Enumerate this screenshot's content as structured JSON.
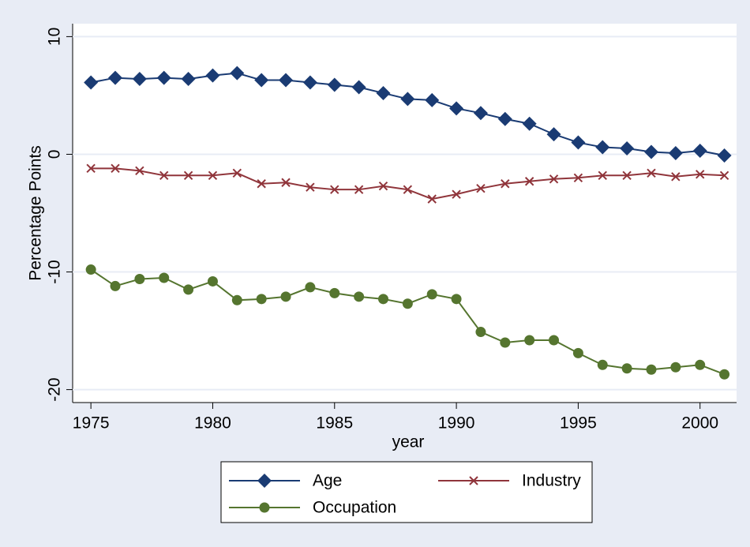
{
  "chart_data": {
    "type": "line",
    "x_label": "year",
    "y_label": "Percentage Points",
    "x": [
      1975,
      1976,
      1977,
      1978,
      1979,
      1980,
      1981,
      1982,
      1983,
      1984,
      1985,
      1986,
      1987,
      1988,
      1989,
      1990,
      1991,
      1992,
      1993,
      1994,
      1995,
      1996,
      1997,
      1998,
      1999,
      2000,
      2001
    ],
    "series": [
      {
        "name": "Age",
        "color": "#1a3b73",
        "marker": "diamond",
        "values": [
          6.1,
          6.5,
          6.4,
          6.5,
          6.4,
          6.7,
          6.9,
          6.3,
          6.3,
          6.1,
          5.9,
          5.7,
          5.2,
          4.7,
          4.6,
          3.9,
          3.5,
          3.0,
          2.6,
          1.7,
          1.0,
          0.6,
          0.5,
          0.2,
          0.1,
          0.3,
          -0.1
        ]
      },
      {
        "name": "Industry",
        "color": "#90353b",
        "marker": "x",
        "values": [
          -1.2,
          -1.2,
          -1.4,
          -1.8,
          -1.8,
          -1.8,
          -1.6,
          -2.5,
          -2.4,
          -2.8,
          -3.0,
          -3.0,
          -2.7,
          -3.0,
          -3.8,
          -3.4,
          -2.9,
          -2.5,
          -2.3,
          -2.1,
          -2.0,
          -1.8,
          -1.8,
          -1.6,
          -1.9,
          -1.7,
          -1.8
        ]
      },
      {
        "name": "Occupation",
        "color": "#55752f",
        "marker": "circle",
        "values": [
          -9.8,
          -11.2,
          -10.6,
          -10.5,
          -11.5,
          -10.8,
          -12.4,
          -12.3,
          -12.1,
          -11.3,
          -11.8,
          -12.1,
          -12.3,
          -12.7,
          -11.9,
          -12.3,
          -15.1,
          -16.0,
          -15.8,
          -15.8,
          -16.9,
          -17.9,
          -18.2,
          -18.3,
          -18.1,
          -17.9,
          -18.7
        ]
      }
    ],
    "xlim": [
      1974.25,
      2001.5
    ],
    "xticks": [
      1975,
      1980,
      1985,
      1990,
      1995,
      2000
    ],
    "ylim": [
      -21.1,
      11.1
    ],
    "yticks": [
      -20,
      -10,
      0,
      10
    ],
    "grid": true,
    "legend": "bottom"
  }
}
